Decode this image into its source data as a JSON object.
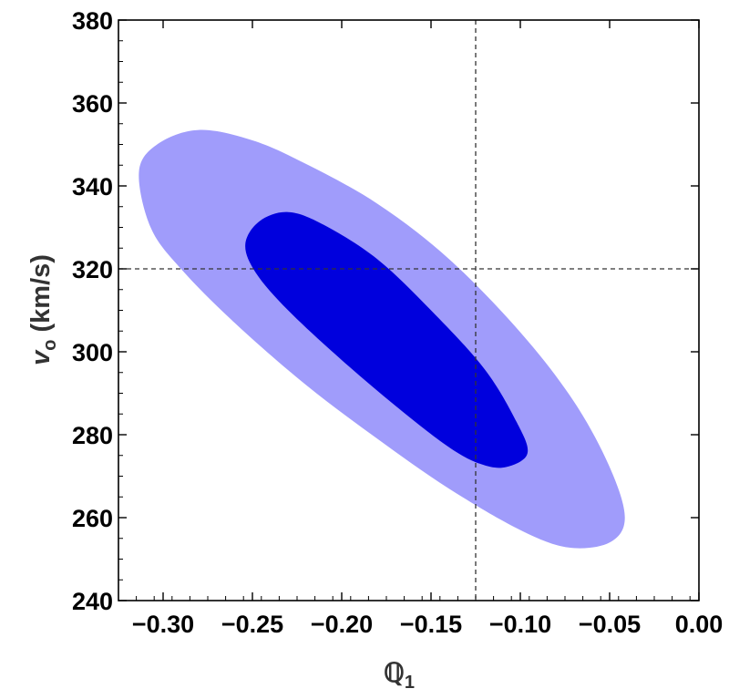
{
  "chart_data": {
    "type": "contour",
    "xlabel": "ℚ",
    "xlabel_sub": "1",
    "ylabel_italic": "v",
    "ylabel_sub": "o",
    "ylabel_rest": " (km/s)",
    "xlim": [
      -0.325,
      0.0
    ],
    "ylim": [
      240,
      380
    ],
    "xticks": [
      -0.3,
      -0.25,
      -0.2,
      -0.15,
      -0.1,
      -0.05,
      0.0
    ],
    "xtick_labels": [
      "−0.30",
      "−0.25",
      "−0.20",
      "−0.15",
      "−0.10",
      "−0.05",
      "0.00"
    ],
    "yticks": [
      240,
      260,
      280,
      300,
      320,
      340,
      360,
      380
    ],
    "ytick_labels": [
      "240",
      "260",
      "280",
      "300",
      "320",
      "340",
      "360",
      "380"
    ],
    "colors": {
      "outer": "#a09cfb",
      "inner": "#0000dd",
      "reference": "#333333"
    },
    "reference_lines": {
      "x": -0.125,
      "y": 320
    },
    "regions": [
      {
        "level": "outer",
        "outline": [
          [
            -0.3135,
            343.4
          ],
          [
            -0.303,
            350.1
          ],
          [
            -0.28,
            353.5
          ],
          [
            -0.25,
            351.0
          ],
          [
            -0.22,
            345.3
          ],
          [
            -0.18,
            335.7
          ],
          [
            -0.14,
            322.4
          ],
          [
            -0.1,
            304.7
          ],
          [
            -0.07,
            288.0
          ],
          [
            -0.05,
            272.2
          ],
          [
            -0.0415,
            260.0
          ],
          [
            -0.05,
            254.0
          ],
          [
            -0.073,
            252.8
          ],
          [
            -0.1,
            257.0
          ],
          [
            -0.14,
            267.0
          ],
          [
            -0.18,
            279.0
          ],
          [
            -0.22,
            292.0
          ],
          [
            -0.26,
            307.0
          ],
          [
            -0.29,
            320.0
          ],
          [
            -0.307,
            330.0
          ],
          [
            -0.3135,
            343.4
          ]
        ]
      },
      {
        "level": "inner",
        "outline": [
          [
            -0.254,
            325.9
          ],
          [
            -0.246,
            331.5
          ],
          [
            -0.23,
            333.7
          ],
          [
            -0.21,
            330.6
          ],
          [
            -0.18,
            322.3
          ],
          [
            -0.15,
            310.0
          ],
          [
            -0.12,
            295.8
          ],
          [
            -0.102,
            283.0
          ],
          [
            -0.096,
            275.5
          ],
          [
            -0.108,
            272.2
          ],
          [
            -0.122,
            272.9
          ],
          [
            -0.14,
            277.0
          ],
          [
            -0.17,
            287.0
          ],
          [
            -0.2,
            298.0
          ],
          [
            -0.23,
            310.0
          ],
          [
            -0.248,
            319.0
          ],
          [
            -0.254,
            325.9
          ]
        ]
      }
    ]
  }
}
